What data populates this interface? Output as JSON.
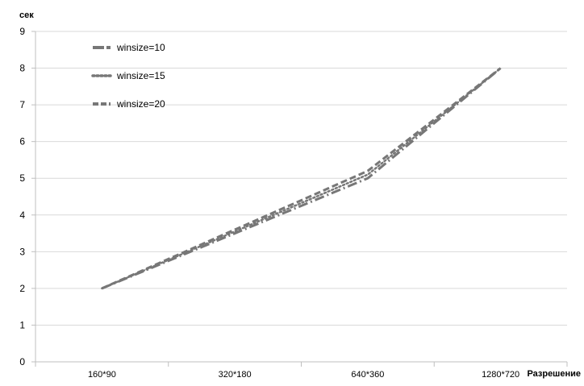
{
  "chart_data": {
    "type": "line",
    "title": "",
    "xlabel": "Разрешение",
    "ylabel": "сек",
    "categories": [
      "160*90",
      "320*180",
      "640*360",
      "1280*720"
    ],
    "ylim": [
      0,
      9
    ],
    "yticks": [
      0,
      1,
      2,
      3,
      4,
      5,
      6,
      7,
      8,
      9
    ],
    "grid": "horizontal",
    "legend_position": "top-left",
    "line_color": "#777777",
    "series": [
      {
        "name": "winsize=10",
        "values": [
          2.0,
          3.5,
          5.0,
          8.0
        ],
        "dash": "long-dash"
      },
      {
        "name": "winsize=15",
        "values": [
          2.0,
          3.55,
          5.1,
          8.0
        ],
        "dash": "dot"
      },
      {
        "name": "winsize=20",
        "values": [
          2.0,
          3.6,
          5.2,
          8.0
        ],
        "dash": "dash"
      }
    ]
  }
}
